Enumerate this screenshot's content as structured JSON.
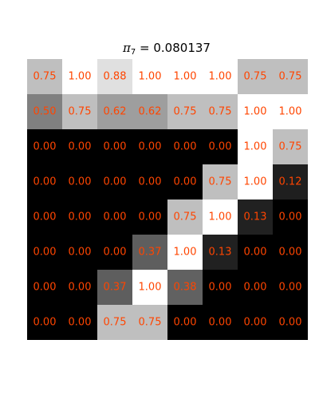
{
  "chart_data": {
    "type": "heatmap",
    "title": {
      "symbol": "π",
      "subscript": "7",
      "equals": " = ",
      "value": "0.080137"
    },
    "colormap": "gray",
    "value_range": [
      0,
      1
    ],
    "annotation_color": "#ff4500",
    "rows": [
      [
        "0.75",
        "1.00",
        "0.88",
        "1.00",
        "1.00",
        "1.00",
        "0.75",
        "0.75"
      ],
      [
        "0.50",
        "0.75",
        "0.62",
        "0.62",
        "0.75",
        "0.75",
        "1.00",
        "1.00"
      ],
      [
        "0.00",
        "0.00",
        "0.00",
        "0.00",
        "0.00",
        "0.00",
        "1.00",
        "0.75"
      ],
      [
        "0.00",
        "0.00",
        "0.00",
        "0.00",
        "0.00",
        "0.75",
        "1.00",
        "0.12"
      ],
      [
        "0.00",
        "0.00",
        "0.00",
        "0.00",
        "0.75",
        "1.00",
        "0.13",
        "0.00"
      ],
      [
        "0.00",
        "0.00",
        "0.00",
        "0.37",
        "1.00",
        "0.13",
        "0.00",
        "0.00"
      ],
      [
        "0.00",
        "0.00",
        "0.37",
        "1.00",
        "0.38",
        "0.00",
        "0.00",
        "0.00"
      ],
      [
        "0.00",
        "0.00",
        "0.75",
        "0.75",
        "0.00",
        "0.00",
        "0.00",
        "0.00"
      ]
    ]
  }
}
